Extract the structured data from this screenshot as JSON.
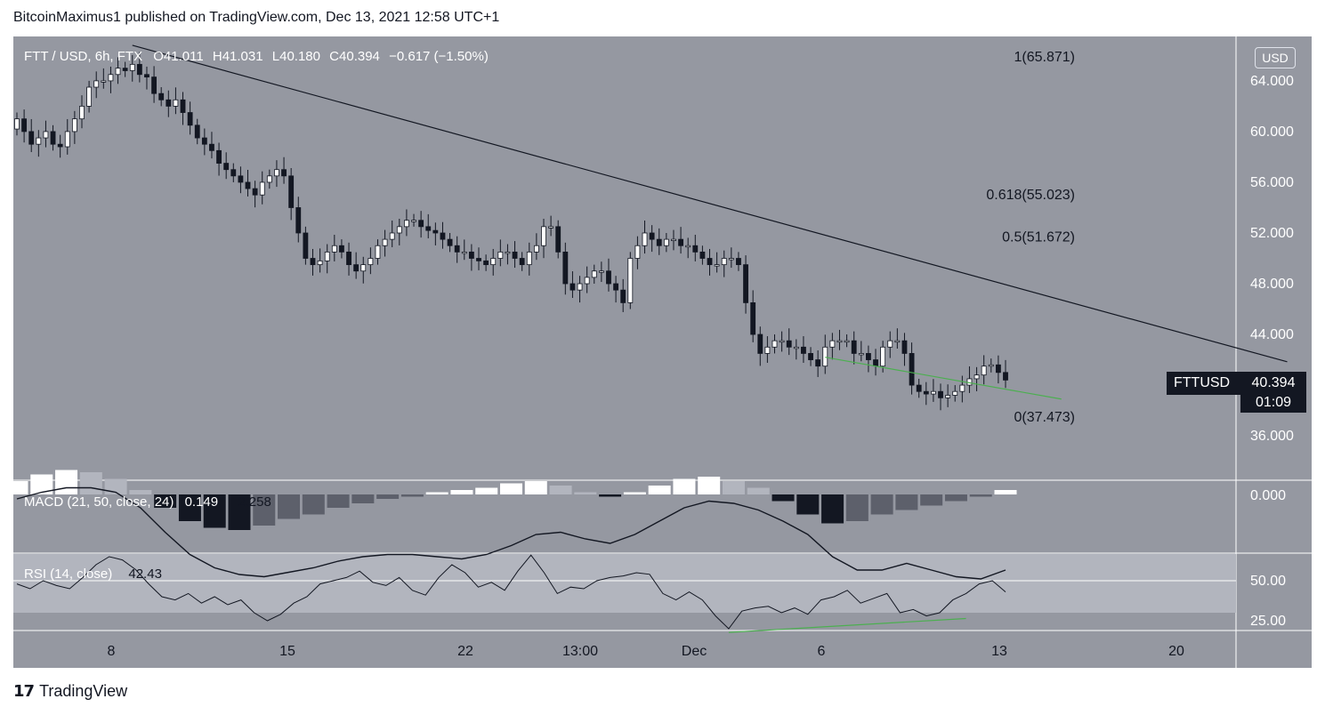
{
  "header": {
    "published": "BitcoinMaximus1 published on TradingView.com, Dec 13, 2021 12:58 UTC+1"
  },
  "footer": {
    "brand": "TradingView"
  },
  "symbol_legend": {
    "pair": "FTT / USD, 6h, FTX",
    "o_label": "O",
    "o_val": "41.011",
    "h_label": "H",
    "h_val": "41.031",
    "l_label": "L",
    "l_val": "40.180",
    "c_label": "C",
    "c_val": "40.394",
    "change": "−0.617 (−1.50%)"
  },
  "currency_badge": "USD",
  "price_tag": {
    "symbol": "FTTUSD",
    "price": "40.394",
    "countdown": "01:09"
  },
  "macd_legend": {
    "label": "MACD (21, 50, close, 24)",
    "v1": "0.149",
    "v2": "2.258"
  },
  "rsi_legend": {
    "label": "RSI (14, close)",
    "value": "42.43"
  },
  "colors": {
    "background": "#9598a1",
    "up_candle": "#ffffff",
    "down_candle": "#131722",
    "trendline": "#131722",
    "divergence": "#4caf50"
  },
  "chart_data": {
    "type": "candlestick",
    "symbol": "FTT / USD",
    "interval": "6h",
    "exchange": "FTX",
    "price_axis": {
      "ticks": [
        64,
        60,
        56,
        52,
        48,
        44,
        36
      ],
      "tick_labels": [
        "64.000",
        "60.000",
        "56.000",
        "52.000",
        "48.000",
        "44.000",
        "36.000"
      ],
      "range": [
        32.5,
        67.5
      ]
    },
    "time_axis": {
      "labels": [
        "8",
        "15",
        "22",
        "13:00",
        "Dec",
        "6",
        "13",
        "20"
      ]
    },
    "ohlc_last": {
      "open": 41.011,
      "high": 41.031,
      "low": 40.18,
      "close": 40.394,
      "change": -0.617,
      "change_pct": -1.5
    },
    "closes": [
      61,
      60,
      59,
      59.5,
      60,
      59,
      58.8,
      60,
      61,
      62,
      63.5,
      64,
      64,
      64.5,
      65,
      64.8,
      65.3,
      64.5,
      64.3,
      63,
      62.5,
      62,
      62.5,
      61.5,
      60.5,
      59.5,
      59,
      58.5,
      57.5,
      57,
      56.5,
      56,
      55.5,
      55,
      56,
      56.5,
      57,
      56.5,
      54,
      52,
      50,
      49.5,
      49.8,
      50.5,
      51,
      50.5,
      49.5,
      49,
      49.5,
      50,
      51,
      51.5,
      52,
      52.5,
      53,
      53,
      52.5,
      52.2,
      52,
      51.5,
      51,
      50.5,
      50.5,
      50,
      49.8,
      49.5,
      50,
      50.5,
      50.5,
      50,
      49.5,
      50.5,
      51,
      52.5,
      52.5,
      50.5,
      48,
      47.5,
      48,
      48.5,
      49,
      49,
      48,
      47.5,
      46.5,
      50,
      51,
      52,
      51.5,
      51,
      51.5,
      51.5,
      51,
      51,
      50.5,
      50,
      49.5,
      49.5,
      50,
      50,
      49.5,
      46.5,
      44,
      42.5,
      43,
      43.5,
      43.5,
      43,
      43,
      42.5,
      42,
      41.5,
      43,
      43.5,
      43.5,
      43.5,
      42.5,
      42.5,
      42,
      41.5,
      43,
      43.5,
      43.5,
      42.5,
      40,
      39.5,
      39.3,
      39.5,
      39,
      39.2,
      39.5,
      40,
      40.5,
      40.8,
      41.5,
      41.6,
      41,
      40.4
    ],
    "fib_levels": [
      {
        "label": "1(65.871)",
        "value": 65.871
      },
      {
        "label": "0.618(55.023)",
        "value": 55.023
      },
      {
        "label": "0.5(51.672)",
        "value": 51.672
      },
      {
        "label": "0(37.473)",
        "value": 37.473
      }
    ],
    "trendline": {
      "from": {
        "index": 16,
        "price": 66.8
      },
      "to": {
        "index": 160,
        "price": 41.7
      }
    },
    "price_divergence": {
      "from": {
        "index": 112,
        "price": 42.2
      },
      "to": {
        "index": 144,
        "price": 38.9
      }
    },
    "macd": {
      "params": "21, 50, close, 24",
      "axis_label": "0.000",
      "line": [
        1.0,
        1.3,
        1.5,
        1.5,
        1.3,
        0.6,
        -0.5,
        -1.5,
        -2.1,
        -2.4,
        -2.5,
        -2.3,
        -2.1,
        -1.8,
        -1.6,
        -1.5,
        -1.5,
        -1.6,
        -1.7,
        -1.5,
        -1.1,
        -0.6,
        -0.5,
        -0.8,
        -1.0,
        -0.6,
        0.0,
        0.6,
        0.9,
        0.8,
        0.5,
        0.0,
        -0.6,
        -1.6,
        -2.2,
        -2.2,
        -1.9,
        -2.2,
        -2.5,
        -2.6,
        -2.2
      ],
      "histogram": [
        0.6,
        0.9,
        1.1,
        1.0,
        0.7,
        0.2,
        -0.6,
        -1.2,
        -1.5,
        -1.6,
        -1.4,
        -1.1,
        -0.9,
        -0.6,
        -0.4,
        -0.2,
        -0.1,
        0.1,
        0.2,
        0.3,
        0.5,
        0.6,
        0.4,
        0.1,
        -0.1,
        0.1,
        0.4,
        0.7,
        0.8,
        0.6,
        0.3,
        -0.3,
        -0.9,
        -1.3,
        -1.2,
        -0.9,
        -0.7,
        -0.5,
        -0.3,
        -0.1,
        0.2
      ]
    },
    "rsi": {
      "params": "14, close",
      "last": 42.43,
      "axis_ticks": [
        50,
        25
      ],
      "axis_labels": [
        "50.00",
        "25.00"
      ],
      "values": [
        48,
        45,
        50,
        47,
        45,
        52,
        60,
        65,
        63,
        57,
        48,
        40,
        38,
        42,
        36,
        40,
        35,
        38,
        30,
        25,
        29,
        36,
        40,
        48,
        50,
        52,
        56,
        49,
        47,
        52,
        44,
        41,
        52,
        60,
        55,
        46,
        49,
        44,
        56,
        66,
        55,
        42,
        46,
        45,
        50,
        52,
        53,
        55,
        54,
        42,
        38,
        43,
        38,
        28,
        20,
        31,
        33,
        34,
        30,
        33,
        29,
        38,
        40,
        44,
        36,
        39,
        42,
        30,
        32,
        28,
        30,
        38,
        42,
        48,
        50,
        43
      ],
      "divergence": {
        "from": {
          "index": 54,
          "value": 20.5
        },
        "to": {
          "index": 72,
          "value": 27.5
        }
      }
    }
  }
}
